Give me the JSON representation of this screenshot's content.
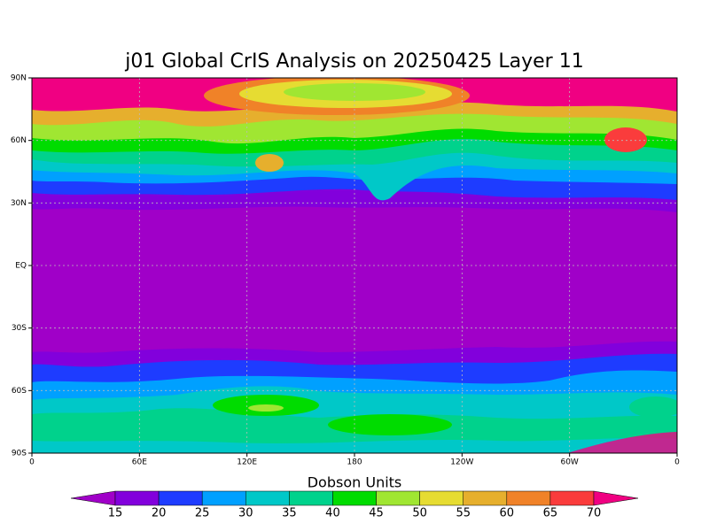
{
  "title": "j01 Global CrIS Analysis on 20250425 Layer 11",
  "map": {
    "lat_labels": [
      "90N",
      "60N",
      "30N",
      "EQ",
      "30S",
      "60S",
      "90S"
    ],
    "lon_labels": [
      "0",
      "60E",
      "120E",
      "180",
      "120W",
      "60W",
      "0"
    ]
  },
  "colorbar": {
    "label": "Dobson Units",
    "levels": [
      15,
      20,
      25,
      30,
      35,
      40,
      45,
      50,
      55,
      60,
      65,
      70
    ],
    "colors": [
      "#a000c8",
      "#8200dc",
      "#1e3cff",
      "#00a0ff",
      "#00c8c8",
      "#00d28c",
      "#00dc00",
      "#a0e632",
      "#e6dc32",
      "#e6af2d",
      "#f08228",
      "#fa3c3c",
      "#f00082"
    ]
  }
}
